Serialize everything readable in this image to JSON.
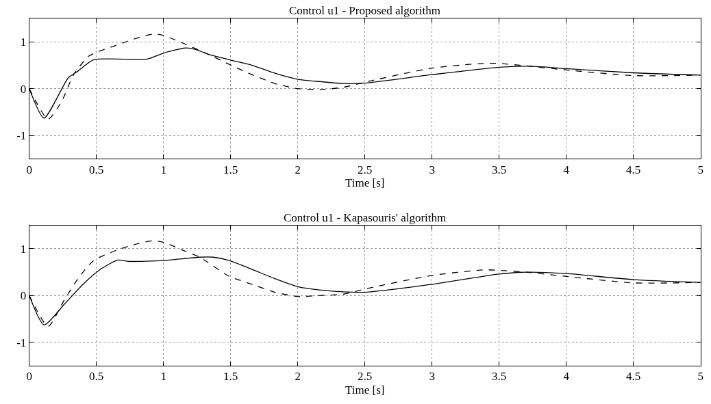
{
  "chart_data": [
    {
      "type": "line",
      "title": "Control u1 - Proposed algorithm",
      "xlabel": "Time [s]",
      "xlim": [
        0,
        5
      ],
      "xticks": [
        0,
        0.5,
        1,
        1.5,
        2,
        2.5,
        3,
        3.5,
        4,
        4.5,
        5
      ],
      "ylim": [
        -1.5,
        1.5
      ],
      "yticks": [
        -1,
        0,
        1
      ],
      "grid": true,
      "series": [
        {
          "color": "#000000",
          "line_style": "solid",
          "x": [
            0,
            0.11,
            0.29,
            0.36,
            0.48,
            0.85,
            0.89,
            1.0,
            1.16,
            1.24,
            1.33,
            1.49,
            1.66,
            1.83,
            2.0,
            2.17,
            2.34,
            2.5,
            3.0,
            3.5,
            3.73,
            4.0,
            4.5,
            5.0
          ],
          "values": [
            0,
            -0.63,
            0.23,
            0.37,
            0.62,
            0.62,
            0.64,
            0.76,
            0.87,
            0.84,
            0.74,
            0.62,
            0.5,
            0.33,
            0.2,
            0.15,
            0.11,
            0.12,
            0.3,
            0.46,
            0.48,
            0.43,
            0.34,
            0.29
          ]
        },
        {
          "color": "#000000",
          "line_style": "dashed",
          "x": [
            0,
            0.14,
            0.24,
            0.33,
            0.44,
            0.51,
            0.65,
            0.82,
            0.93,
            1.0,
            1.14,
            1.33,
            1.49,
            1.66,
            1.83,
            2.0,
            2.17,
            2.34,
            2.5,
            3.0,
            3.38,
            3.5,
            3.73,
            4.0,
            4.5,
            5.0
          ],
          "values": [
            0,
            -0.65,
            -0.28,
            0.3,
            0.69,
            0.79,
            0.93,
            1.1,
            1.17,
            1.14,
            0.98,
            0.74,
            0.52,
            0.3,
            0.11,
            0.0,
            -0.02,
            0.03,
            0.14,
            0.44,
            0.54,
            0.54,
            0.48,
            0.4,
            0.28,
            0.29
          ]
        }
      ]
    },
    {
      "type": "line",
      "title": "Control u1 - Kapasouris' algorithm",
      "xlabel": "Time [s]",
      "xlim": [
        0,
        5
      ],
      "xticks": [
        0,
        0.5,
        1,
        1.5,
        2,
        2.5,
        3,
        3.5,
        4,
        4.5,
        5
      ],
      "ylim": [
        -1.5,
        1.5
      ],
      "yticks": [
        -1,
        0,
        1
      ],
      "grid": true,
      "series": [
        {
          "color": "#000000",
          "line_style": "solid",
          "x": [
            0,
            0.11,
            0.26,
            0.4,
            0.53,
            0.66,
            0.74,
            1.0,
            1.27,
            1.37,
            1.49,
            1.66,
            1.83,
            2.0,
            2.16,
            2.34,
            2.5,
            3.0,
            3.5,
            3.7,
            4.0,
            4.5,
            5.0
          ],
          "values": [
            0,
            -0.63,
            -0.19,
            0.24,
            0.56,
            0.76,
            0.73,
            0.75,
            0.82,
            0.82,
            0.75,
            0.56,
            0.36,
            0.19,
            0.12,
            0.08,
            0.07,
            0.24,
            0.46,
            0.5,
            0.47,
            0.34,
            0.28
          ]
        },
        {
          "color": "#000000",
          "line_style": "dashed",
          "x": [
            0,
            0.14,
            0.26,
            0.37,
            0.48,
            0.65,
            0.82,
            0.92,
            1.0,
            1.16,
            1.27,
            1.49,
            1.66,
            1.83,
            2.0,
            2.16,
            2.34,
            2.5,
            3.0,
            3.39,
            3.5,
            3.7,
            4.0,
            4.5,
            5.0
          ],
          "values": [
            0,
            -0.66,
            -0.1,
            0.39,
            0.75,
            0.97,
            1.12,
            1.17,
            1.14,
            0.95,
            0.82,
            0.41,
            0.24,
            0.07,
            -0.02,
            0.0,
            0.03,
            0.14,
            0.43,
            0.55,
            0.54,
            0.5,
            0.41,
            0.27,
            0.28
          ]
        }
      ]
    }
  ]
}
